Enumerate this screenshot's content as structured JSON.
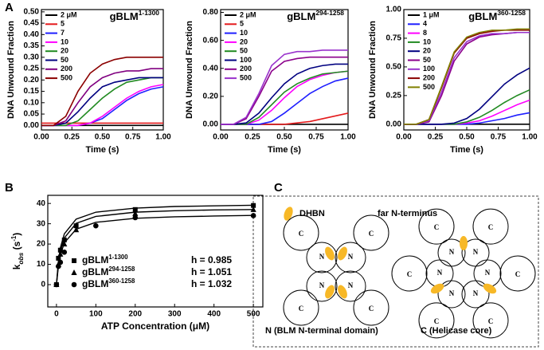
{
  "panel_labels": [
    "A",
    "B",
    "C"
  ],
  "chart_data": [
    {
      "type": "line",
      "title": "gBLM1-1300",
      "x_label": "Time (s)",
      "y_label": "DNA Unwound Fraction",
      "xlim": [
        0,
        1
      ],
      "xticks": [
        {
          "value": 0,
          "label": "0.00"
        },
        0.25,
        {
          "value": 0.5,
          "label": "0.50"
        },
        0.75,
        {
          "value": 1,
          "label": "1.00"
        }
      ],
      "ylim": [
        -0.02,
        0.51
      ],
      "yticks": [
        {
          "value": 0,
          "label": "0.00"
        },
        0.05,
        {
          "value": 0.1,
          "label": "0.10"
        },
        0.15,
        {
          "value": 0.2,
          "label": "0.20"
        },
        0.25,
        {
          "value": 0.3,
          "label": "0.30"
        },
        0.35,
        {
          "value": 0.4,
          "label": "0.40"
        },
        0.45,
        {
          "value": 0.5,
          "label": "0.50"
        }
      ],
      "x": [
        0,
        0.1,
        0.2,
        0.3,
        0.4,
        0.5,
        0.6,
        0.7,
        0.8,
        0.9,
        1
      ],
      "series": [
        {
          "name": "2 μM",
          "color": "#000000",
          "values": [
            0,
            0,
            0,
            0,
            0,
            0,
            0,
            0,
            0,
            0,
            0
          ]
        },
        {
          "name": "5",
          "color": "#e41a1c",
          "values": [
            0.01,
            0.01,
            0.01,
            0.01,
            0.01,
            0.01,
            0.01,
            0.01,
            0.01,
            0.01,
            0.01
          ]
        },
        {
          "name": "7",
          "color": "#1f1fff",
          "values": [
            0,
            0,
            0,
            0,
            0.01,
            0.03,
            0.07,
            0.11,
            0.14,
            0.16,
            0.17
          ]
        },
        {
          "name": "10",
          "color": "#ff00ff",
          "values": [
            0,
            0,
            0,
            0,
            0.01,
            0.04,
            0.08,
            0.12,
            0.15,
            0.17,
            0.18
          ]
        },
        {
          "name": "20",
          "color": "#228b22",
          "values": [
            0,
            0,
            0,
            0.02,
            0.07,
            0.12,
            0.16,
            0.19,
            0.2,
            0.21,
            0.21
          ]
        },
        {
          "name": "50",
          "color": "#000080",
          "values": [
            0,
            0,
            0.01,
            0.06,
            0.12,
            0.17,
            0.19,
            0.2,
            0.21,
            0.21,
            0.21
          ]
        },
        {
          "name": "200",
          "color": "#800080",
          "values": [
            0,
            0,
            0.02,
            0.1,
            0.17,
            0.21,
            0.23,
            0.24,
            0.24,
            0.25,
            0.25
          ]
        },
        {
          "name": "500",
          "color": "#8b0000",
          "values": [
            0,
            0,
            0.04,
            0.15,
            0.23,
            0.27,
            0.29,
            0.3,
            0.3,
            0.3,
            0.3
          ]
        }
      ]
    },
    {
      "type": "line",
      "title": "gBLM294-1258",
      "x_label": "Time (s)",
      "y_label": "DNA Unwound Fraction",
      "xlim": [
        0,
        1
      ],
      "xticks": [
        {
          "value": 0,
          "label": "0.00"
        },
        0.25,
        {
          "value": 0.5,
          "label": "0.50"
        },
        0.75,
        {
          "value": 1,
          "label": "1.00"
        }
      ],
      "ylim": [
        -0.04,
        0.82
      ],
      "yticks": [
        {
          "value": 0,
          "label": "0.00"
        },
        {
          "value": 0.2,
          "label": "0.20"
        },
        {
          "value": 0.4,
          "label": "0.40"
        },
        {
          "value": 0.6,
          "label": "0.60"
        },
        {
          "value": 0.8,
          "label": "0.80"
        }
      ],
      "x": [
        0,
        0.1,
        0.2,
        0.3,
        0.4,
        0.5,
        0.6,
        0.7,
        0.8,
        0.9,
        1
      ],
      "series": [
        {
          "name": "2 μM",
          "color": "#000000",
          "values": [
            0,
            0,
            0,
            0,
            0,
            0,
            0,
            0,
            0,
            0,
            0
          ]
        },
        {
          "name": "5",
          "color": "#e41a1c",
          "values": [
            0,
            0,
            0,
            0,
            0,
            0,
            0.01,
            0.02,
            0.04,
            0.06,
            0.08
          ]
        },
        {
          "name": "10",
          "color": "#1f1fff",
          "values": [
            0,
            0,
            0,
            0,
            0.02,
            0.08,
            0.15,
            0.22,
            0.27,
            0.31,
            0.33
          ]
        },
        {
          "name": "20",
          "color": "#ff00ff",
          "values": [
            0,
            0,
            0,
            0.03,
            0.1,
            0.19,
            0.27,
            0.32,
            0.35,
            0.37,
            0.38
          ]
        },
        {
          "name": "50",
          "color": "#228b22",
          "values": [
            0,
            0,
            0,
            0.05,
            0.14,
            0.23,
            0.29,
            0.33,
            0.36,
            0.37,
            0.38
          ]
        },
        {
          "name": "100",
          "color": "#000080",
          "values": [
            0,
            0,
            0.01,
            0.08,
            0.19,
            0.29,
            0.36,
            0.4,
            0.42,
            0.43,
            0.43
          ]
        },
        {
          "name": "200",
          "color": "#8b008b",
          "values": [
            0,
            0,
            0.04,
            0.2,
            0.38,
            0.45,
            0.47,
            0.48,
            0.48,
            0.48,
            0.48
          ]
        },
        {
          "name": "500",
          "color": "#9932cc",
          "values": [
            0,
            0,
            0.05,
            0.22,
            0.42,
            0.5,
            0.52,
            0.52,
            0.53,
            0.53,
            0.53
          ]
        }
      ]
    },
    {
      "type": "line",
      "title": "gBLM360-1258",
      "x_label": "Time (s)",
      "y_label": "DNA Unwound Fraction",
      "xlim": [
        0,
        1
      ],
      "xticks": [
        {
          "value": 0,
          "label": "0.00"
        },
        0.25,
        {
          "value": 0.5,
          "label": "0.50"
        },
        0.75,
        {
          "value": 1,
          "label": "1.00"
        }
      ],
      "ylim": [
        -0.05,
        1.0
      ],
      "yticks": [
        {
          "value": 0,
          "label": "0.00"
        },
        0.25,
        {
          "value": 0.5,
          "label": "0.50"
        },
        0.75,
        {
          "value": 1,
          "label": "1.00"
        }
      ],
      "x": [
        0,
        0.1,
        0.2,
        0.3,
        0.4,
        0.5,
        0.6,
        0.7,
        0.8,
        0.9,
        1
      ],
      "series": [
        {
          "name": "1 μM",
          "color": "#000000",
          "values": [
            0,
            0,
            0,
            0,
            0,
            0,
            0,
            0,
            0,
            0,
            0
          ]
        },
        {
          "name": "4",
          "color": "#1f1fff",
          "values": [
            0,
            0,
            0,
            0,
            0,
            0,
            0.01,
            0.03,
            0.05,
            0.08,
            0.1
          ]
        },
        {
          "name": "8",
          "color": "#ff00ff",
          "values": [
            0,
            0,
            0,
            0,
            0,
            0.01,
            0.03,
            0.07,
            0.12,
            0.17,
            0.21
          ]
        },
        {
          "name": "10",
          "color": "#228b22",
          "values": [
            0,
            0,
            0,
            0,
            0,
            0.02,
            0.06,
            0.12,
            0.19,
            0.25,
            0.3
          ]
        },
        {
          "name": "20",
          "color": "#000080",
          "values": [
            0,
            0,
            0,
            0,
            0.01,
            0.05,
            0.13,
            0.24,
            0.35,
            0.43,
            0.49
          ]
        },
        {
          "name": "50",
          "color": "#8b008b",
          "values": [
            0,
            0,
            0.02,
            0.25,
            0.55,
            0.7,
            0.76,
            0.78,
            0.79,
            0.8,
            0.8
          ]
        },
        {
          "name": "100",
          "color": "#9932cc",
          "values": [
            0,
            0,
            0.03,
            0.28,
            0.58,
            0.72,
            0.77,
            0.79,
            0.79,
            0.8,
            0.8
          ]
        },
        {
          "name": "200",
          "color": "#8b0000",
          "values": [
            0,
            0,
            0.04,
            0.32,
            0.62,
            0.75,
            0.79,
            0.81,
            0.82,
            0.82,
            0.82
          ]
        },
        {
          "name": "500",
          "color": "#808000",
          "values": [
            0,
            0,
            0.04,
            0.33,
            0.63,
            0.76,
            0.8,
            0.82,
            0.82,
            0.83,
            0.83
          ]
        }
      ]
    },
    {
      "type": "scatter",
      "x_label": "ATP Concentration (μM)",
      "y_label": "kobs (s-1)",
      "xlim": [
        -22,
        524
      ],
      "xticks": [
        0,
        100,
        200,
        300,
        400,
        500
      ],
      "ylim": [
        -11,
        44
      ],
      "yticks": [
        0,
        10,
        20,
        30,
        40
      ],
      "fit_x": [
        0,
        5,
        10,
        20,
        50,
        100,
        200,
        300,
        400,
        500
      ],
      "series": [
        {
          "name": "gBLM1-1300",
          "marker": "square",
          "color": "#000000",
          "h_label": "h = 0.985",
          "x": [
            0,
            5,
            10,
            20,
            50,
            200,
            500
          ],
          "values": [
            0,
            13,
            17,
            22,
            29,
            37,
            39
          ],
          "fit_values": [
            0,
            11.8,
            18.2,
            25,
            32.3,
            35.7,
            37.7,
            38.5,
            38.8,
            39.1
          ]
        },
        {
          "name": "gBLM294-1258",
          "marker": "triangle",
          "color": "#000000",
          "h_label": "h = 1.051",
          "x": [
            0,
            5,
            10,
            20,
            50,
            200,
            500
          ],
          "values": [
            0,
            10,
            15,
            20,
            27,
            35,
            37
          ],
          "fit_values": [
            0,
            10.6,
            16.5,
            23,
            30.2,
            33.6,
            35.7,
            36.4,
            36.8,
            37
          ]
        },
        {
          "name": "gBLM360-1258",
          "marker": "circle",
          "color": "#000000",
          "h_label": "h = 1.032",
          "x": [
            0,
            5,
            10,
            20,
            100,
            200,
            500
          ],
          "values": [
            0,
            9,
            11,
            16,
            29,
            33,
            34
          ],
          "fit_values": [
            0,
            9.2,
            14.6,
            20.6,
            27.3,
            30.7,
            32.7,
            33.4,
            33.8,
            34.1
          ]
        }
      ]
    }
  ],
  "diagram": {
    "legend": [
      "DHBN",
      "far N-terminus"
    ],
    "core_letter": "C",
    "nterm_letter": "N",
    "captions": [
      "N (BLM N-terminal domain)",
      "C (Helicase core)"
    ]
  }
}
